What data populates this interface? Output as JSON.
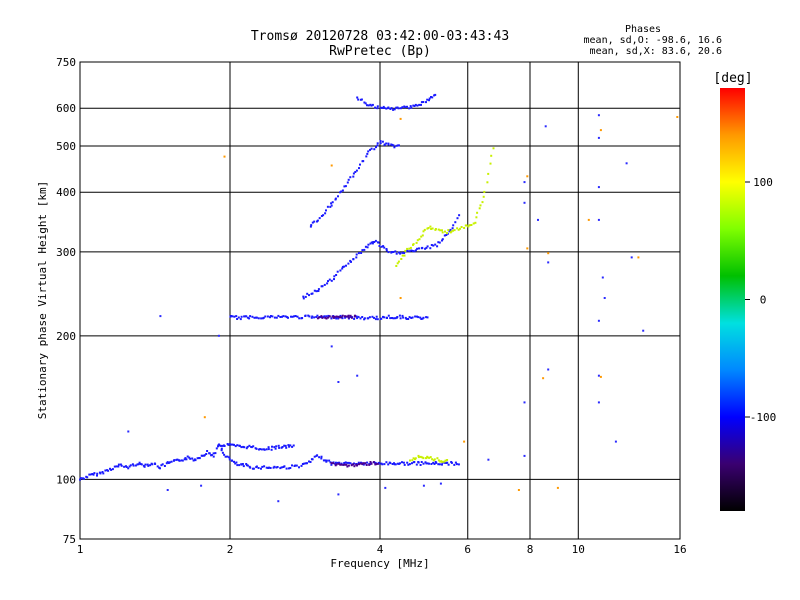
{
  "chart_data": {
    "type": "scatter",
    "title": "Tromsø 20120728 03:42:00-03:43:43",
    "subtitle": "RwPretec (Bp)",
    "xlabel": "Frequency [MHz]",
    "ylabel": "Stationary phase Virtual Height [km]",
    "xscale": "log",
    "yscale": "log",
    "xlim": [
      1,
      16
    ],
    "ylim": [
      75,
      750
    ],
    "x_ticks": [
      "1",
      "2",
      "4",
      "6",
      "8",
      "10",
      "16"
    ],
    "y_ticks": [
      "75",
      "100",
      "200",
      "300",
      "400",
      "500",
      "600",
      "750"
    ],
    "grid": true,
    "phase_summary": {
      "title": "Phases",
      "line_o": "mean, sd,O: -98.6, 16.6",
      "line_x": "mean, sd,X:  83.6, 20.6"
    },
    "colorbar": {
      "label": "[deg]",
      "range": [
        -180,
        180
      ],
      "ticks": [
        "100",
        "0",
        "-100"
      ],
      "tick_values": [
        100,
        0,
        -100
      ],
      "colors": [
        "#000000",
        "#3a0070",
        "#0000ff",
        "#0088ff",
        "#00e0e0",
        "#00c000",
        "#80ff00",
        "#ffff00",
        "#ff9900",
        "#ff0000"
      ]
    },
    "series": [
      {
        "segments": [
          {
            "xs": [
              1.0,
              1.05,
              1.1,
              1.15,
              1.2,
              1.25,
              1.3,
              1.35,
              1.4,
              1.45,
              1.5,
              1.55,
              1.6,
              1.65,
              1.7,
              1.75,
              1.8,
              1.85,
              1.9,
              1.95,
              2.0,
              2.05,
              2.1,
              2.15,
              2.2
            ],
            "ys": [
              100,
              102,
              103,
              105,
              107,
              106,
              108,
              107,
              108,
              106,
              108,
              109,
              110,
              111,
              110,
              112,
              114,
              112,
              118,
              113,
              110,
              108,
              107,
              107,
              106
            ]
          },
          {
            "xs": [
              2.2,
              2.4,
              2.6,
              2.8,
              2.9,
              3.0,
              3.1,
              3.2,
              3.4,
              3.6,
              3.8,
              4.0,
              4.2,
              4.4,
              4.6,
              4.8,
              5.0,
              5.2,
              5.5,
              5.8
            ],
            "ys": [
              106,
              106,
              106,
              107,
              109,
              112,
              110,
              108,
              108,
              108,
              108,
              108,
              108,
              108,
              108,
              108,
              108,
              108,
              108,
              108
            ]
          },
          {
            "xs": [
              1.9,
              2.0,
              2.1,
              2.2,
              2.3,
              2.4,
              2.5,
              2.6,
              2.7
            ],
            "ys": [
              118,
              118,
              117,
              117,
              116,
              116,
              117,
              117,
              118
            ]
          },
          {
            "xs": [
              2.0,
              2.1,
              2.2,
              2.4,
              2.6,
              2.8,
              3.0,
              3.2,
              3.4,
              3.6,
              3.8,
              4.0,
              4.2,
              4.4,
              4.6,
              4.8,
              5.0
            ],
            "ys": [
              219,
              218,
              219,
              219,
              219,
              219,
              219,
              219,
              219,
              218,
              218,
              218,
              219,
              219,
              218,
              218,
              219
            ]
          },
          {
            "xs": [
              2.8,
              3.0,
              3.2,
              3.4,
              3.6,
              3.8,
              3.9,
              4.0,
              4.2,
              4.5,
              4.8,
              5.2,
              5.5,
              5.8
            ],
            "ys": [
              240,
              250,
              262,
              280,
              295,
              310,
              316,
              310,
              298,
              300,
              303,
              310,
              330,
              360
            ]
          },
          {
            "xs": [
              2.9,
              3.0,
              3.2,
              3.4,
              3.6,
              3.8,
              4.0,
              4.1,
              4.2,
              4.4
            ],
            "ys": [
              340,
              350,
              378,
              410,
              445,
              485,
              510,
              505,
              500,
              500
            ]
          },
          {
            "xs": [
              3.6,
              3.8,
              4.0,
              4.2,
              4.4,
              4.6,
              4.8,
              5.0,
              5.2
            ],
            "ys": [
              630,
              610,
              600,
              598,
              600,
              605,
              610,
              625,
              640
            ]
          }
        ]
      },
      {
        "segments": [
          {
            "xs": [
              3.2,
              3.4,
              3.6,
              3.8,
              4.0
            ],
            "ys": [
              108,
              107,
              107,
              108,
              108
            ]
          },
          {
            "xs": [
              3.0,
              3.2,
              3.4,
              3.6
            ],
            "ys": [
              219,
              218,
              219,
              219
            ]
          }
        ]
      },
      {
        "segments": [
          {
            "xs": [
              4.3,
              4.5,
              4.8,
              5.0,
              5.4,
              5.8,
              6.2,
              6.5,
              6.8
            ],
            "ys": [
              280,
              300,
              320,
              338,
              330,
              335,
              345,
              400,
              520
            ]
          },
          {
            "xs": [
              4.6,
              4.8,
              5.0,
              5.2,
              5.5
            ],
            "ys": [
              110,
              112,
              111,
              110,
              109
            ]
          }
        ]
      },
      {
        "points": [
          {
            "x": 1.5,
            "y": 95
          },
          {
            "x": 1.75,
            "y": 97
          },
          {
            "x": 2.5,
            "y": 90
          },
          {
            "x": 3.3,
            "y": 93
          },
          {
            "x": 4.1,
            "y": 96
          },
          {
            "x": 4.9,
            "y": 97
          },
          {
            "x": 5.3,
            "y": 98
          },
          {
            "x": 6.6,
            "y": 110
          },
          {
            "x": 7.8,
            "y": 420
          },
          {
            "x": 7.8,
            "y": 380
          },
          {
            "x": 7.8,
            "y": 145
          },
          {
            "x": 7.8,
            "y": 112
          },
          {
            "x": 8.6,
            "y": 550
          },
          {
            "x": 8.7,
            "y": 285
          },
          {
            "x": 8.7,
            "y": 170
          },
          {
            "x": 11.0,
            "y": 580
          },
          {
            "x": 11.0,
            "y": 520
          },
          {
            "x": 11.0,
            "y": 410
          },
          {
            "x": 11.0,
            "y": 350
          },
          {
            "x": 11.2,
            "y": 265
          },
          {
            "x": 11.3,
            "y": 240
          },
          {
            "x": 11.0,
            "y": 215
          },
          {
            "x": 11.0,
            "y": 165
          },
          {
            "x": 11.0,
            "y": 145
          },
          {
            "x": 12.5,
            "y": 460
          },
          {
            "x": 11.9,
            "y": 120
          },
          {
            "x": 13.5,
            "y": 205
          },
          {
            "x": 3.2,
            "y": 190
          },
          {
            "x": 3.3,
            "y": 160
          },
          {
            "x": 3.6,
            "y": 165
          },
          {
            "x": 1.25,
            "y": 126
          },
          {
            "x": 1.45,
            "y": 220
          },
          {
            "x": 1.9,
            "y": 200
          },
          {
            "x": 3.2,
            "y": 375
          },
          {
            "x": 8.3,
            "y": 350
          },
          {
            "x": 12.8,
            "y": 292
          }
        ]
      },
      {
        "points": [
          {
            "x": 3.2,
            "y": 455
          },
          {
            "x": 1.95,
            "y": 475
          },
          {
            "x": 4.4,
            "y": 570
          },
          {
            "x": 7.9,
            "y": 305
          },
          {
            "x": 8.7,
            "y": 298
          },
          {
            "x": 10.5,
            "y": 350
          },
          {
            "x": 11.1,
            "y": 540
          },
          {
            "x": 13.2,
            "y": 292
          },
          {
            "x": 7.6,
            "y": 95
          },
          {
            "x": 9.1,
            "y": 96
          },
          {
            "x": 1.78,
            "y": 135
          },
          {
            "x": 4.4,
            "y": 240
          },
          {
            "x": 5.9,
            "y": 120
          },
          {
            "x": 11.1,
            "y": 164
          },
          {
            "x": 15.8,
            "y": 575
          },
          {
            "x": 8.5,
            "y": 163
          },
          {
            "x": 7.9,
            "y": 432
          }
        ]
      }
    ]
  }
}
